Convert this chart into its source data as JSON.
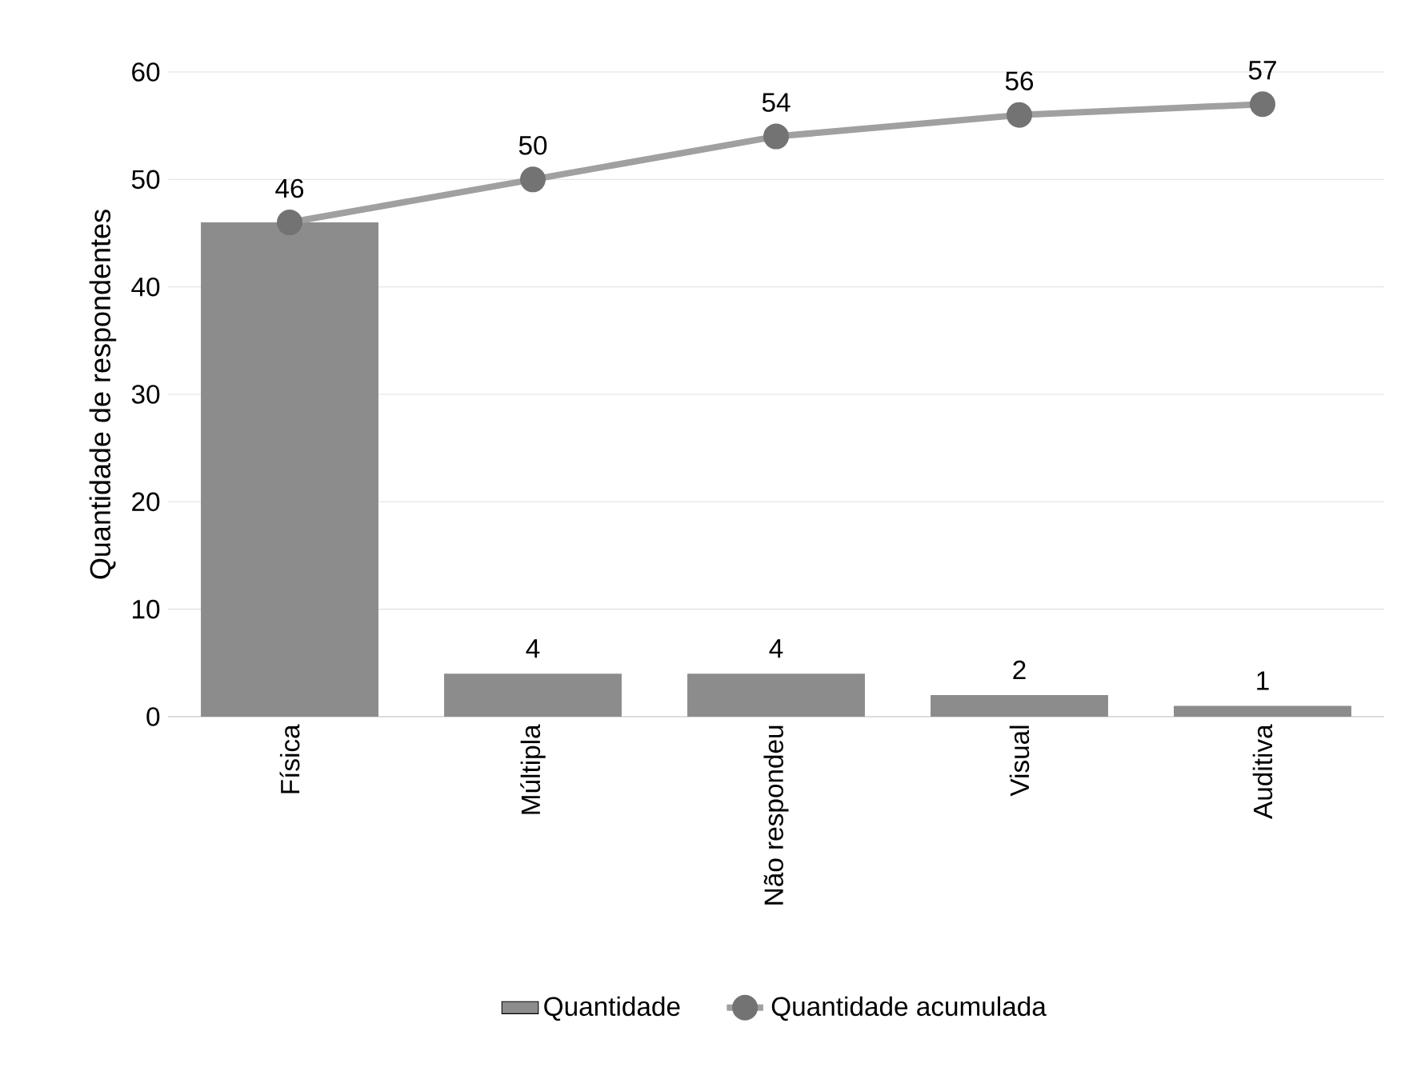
{
  "chart_data": {
    "type": "bar",
    "ylabel": "Quantidade de respondentes",
    "categories": [
      "Física",
      "Múltipla",
      "Não respondeu",
      "Visual",
      "Auditiva"
    ],
    "series": [
      {
        "name": "Quantidade",
        "color": "#8c8c8c",
        "values": [
          46,
          4,
          4,
          2,
          1
        ],
        "value_labels": [
          null,
          "4",
          "4",
          "2",
          "1"
        ]
      },
      {
        "name": "Quantidade acumulada",
        "type": "line",
        "color": "#a0a0a0",
        "marker": "circle",
        "values": [
          46,
          50,
          54,
          56,
          57
        ],
        "value_labels": [
          "46",
          "50",
          "54",
          "56",
          "57"
        ]
      }
    ],
    "ylim": [
      0,
      60
    ],
    "yticks": [
      0,
      10,
      20,
      30,
      40,
      50,
      60
    ],
    "grid": "y",
    "legend": "bottom"
  }
}
